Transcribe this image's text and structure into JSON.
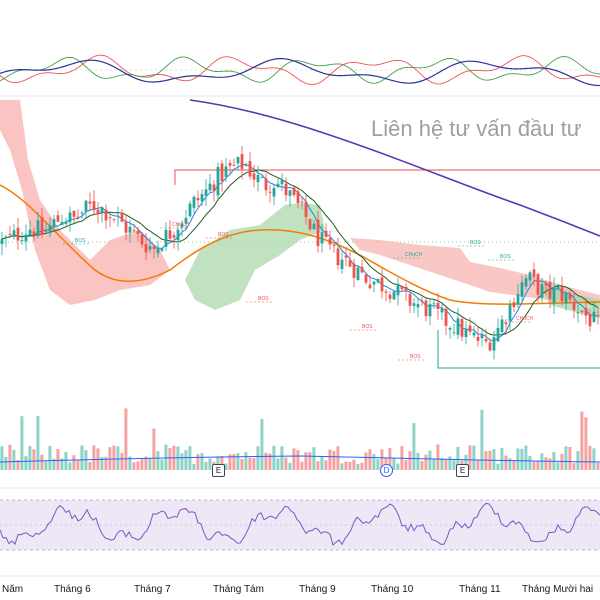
{
  "watermark": "Liên hệ tư vấn đầu tư",
  "months": [
    "Năm",
    "Tháng 6",
    "Tháng 7",
    "Tháng Tám",
    "Tháng 9",
    "Tháng 10",
    "Tháng 11",
    "Tháng Mười hai"
  ],
  "events": [
    "E",
    "D",
    "E"
  ],
  "smc_labels": [
    "BOS",
    "CHoCH",
    "BOS",
    "BOS",
    "BOS",
    "BOS",
    "CHoCH",
    "BOS",
    "BOS",
    "CHoCH"
  ],
  "colors": {
    "up": "#26a69a",
    "down": "#ef5350",
    "cloud_bear": "#f7b0ad",
    "cloud_bull": "#a5d6a7",
    "ma_long": "#5e35b1",
    "ma_mid": "#f57c00",
    "ma_fast": "#1e88e5",
    "kijun": "#1b5e20",
    "rsi": "#7e57c2",
    "volume_ma": "#2962ff"
  },
  "chart_data": {
    "type": "candlestick",
    "price_scale_visible": false,
    "price_series_relative": [
      0.58,
      0.6,
      0.63,
      0.65,
      0.62,
      0.66,
      0.7,
      0.68,
      0.72,
      0.75,
      0.73,
      0.7,
      0.66,
      0.62,
      0.58,
      0.55,
      0.6,
      0.64,
      0.7,
      0.76,
      0.8,
      0.86,
      0.9,
      0.92,
      0.94,
      0.88,
      0.84,
      0.86,
      0.82,
      0.76,
      0.7,
      0.62,
      0.56,
      0.52,
      0.5,
      0.46,
      0.42,
      0.4,
      0.38,
      0.36,
      0.32,
      0.3,
      0.28,
      0.25,
      0.22,
      0.2,
      0.16,
      0.14,
      0.12,
      0.18,
      0.26,
      0.36,
      0.42,
      0.38,
      0.34,
      0.36,
      0.32,
      0.28,
      0.24,
      0.2
    ]
  }
}
